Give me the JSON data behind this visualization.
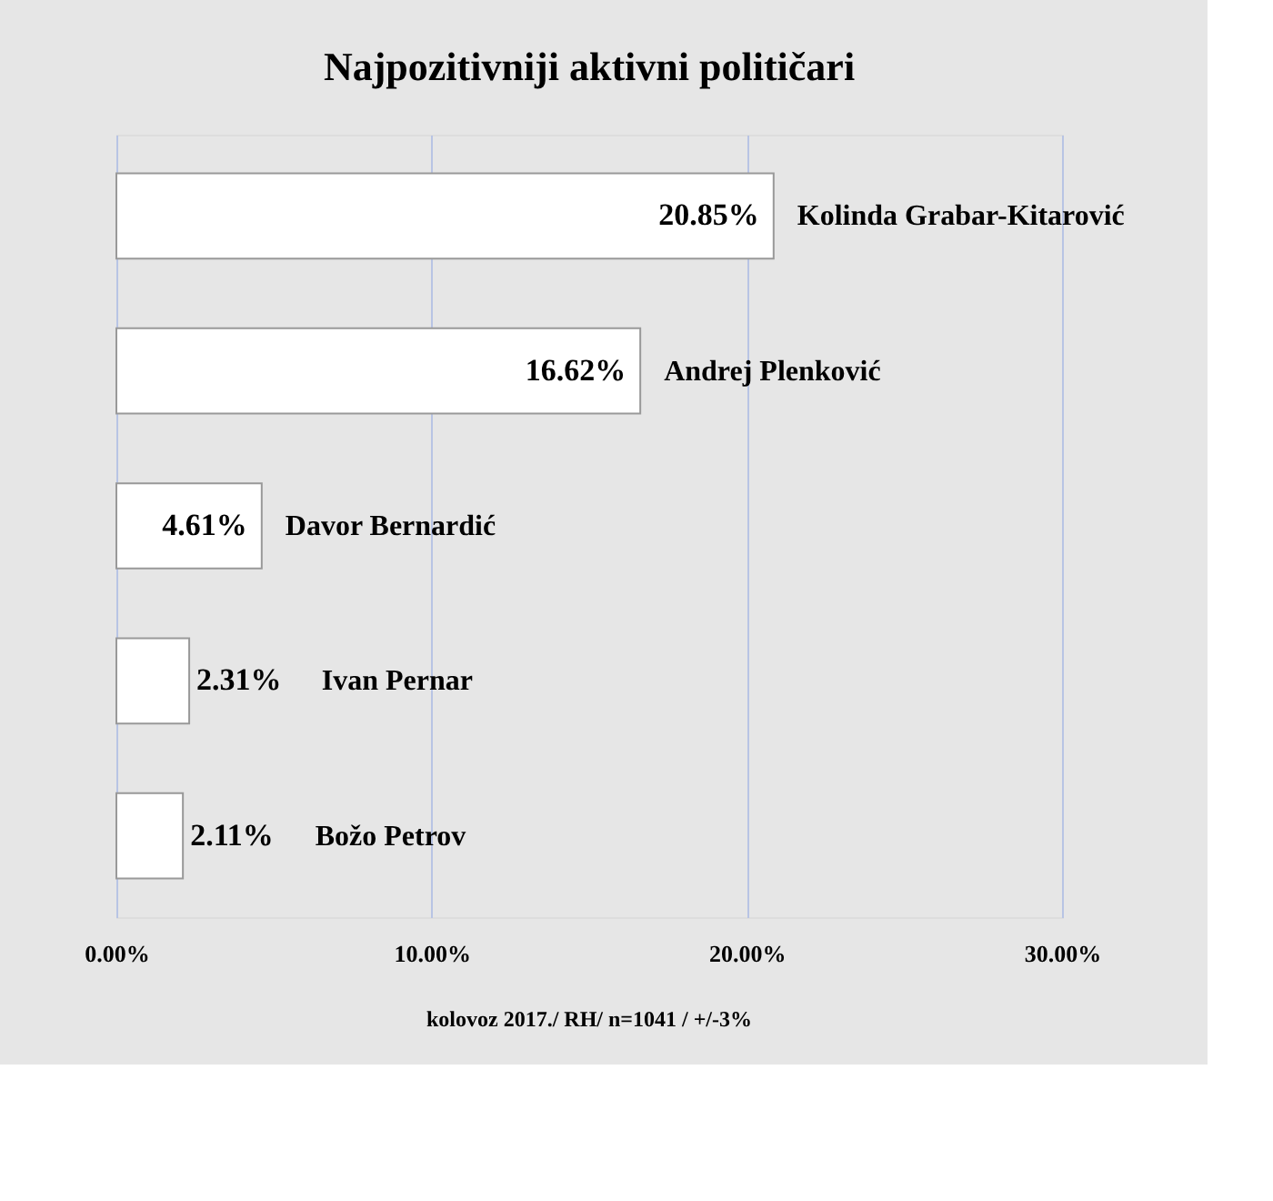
{
  "chart_data": {
    "type": "bar",
    "orientation": "horizontal",
    "title": "Najpozitivniji aktivni političari",
    "categories": [
      "Kolinda Grabar-Kitarović",
      "Andrej Plenković",
      "Davor Bernardić",
      "Ivan Pernar",
      "Božo Petrov"
    ],
    "values": [
      20.85,
      16.62,
      4.61,
      2.31,
      2.11
    ],
    "value_labels": [
      "20.85%",
      "16.62%",
      "4.61%",
      "2.31%",
      "2.11%"
    ],
    "color": "#ffffff",
    "xlim": [
      0,
      30
    ],
    "xticks": [
      {
        "value": 0,
        "label": "0.00%"
      },
      {
        "value": 10,
        "label": "10.00%"
      },
      {
        "value": 20,
        "label": "20.00%"
      },
      {
        "value": 30,
        "label": "30.00%"
      }
    ],
    "grid": "x",
    "tick_labels": "x",
    "annotations": [
      "kolovoz 2017./ RH/ n=1041 / +/-3%"
    ]
  }
}
